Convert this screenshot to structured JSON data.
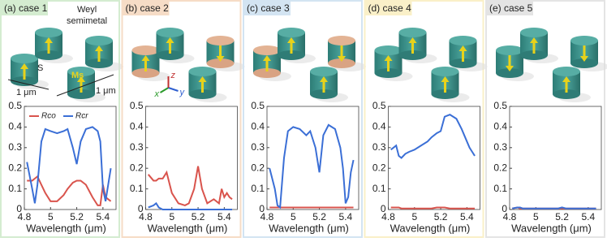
{
  "chart_data": [
    {
      "type": "line",
      "title": "(a) case 1",
      "xlabel": "Wavelength (μm)",
      "annotations": [
        "Weyl",
        "semimetal",
        "S",
        "Ms",
        "1 μm",
        "1 μm"
      ],
      "x": [
        4.82,
        4.86,
        4.88,
        4.9,
        4.93,
        4.96,
        5.0,
        5.05,
        5.1,
        5.13,
        5.17,
        5.2,
        5.23,
        5.27,
        5.32,
        5.36,
        5.38,
        5.4,
        5.42,
        5.44,
        5.46
      ],
      "series": [
        {
          "name": "Rco",
          "color": "#d9544d",
          "values": [
            0.14,
            0.14,
            0.15,
            0.16,
            0.12,
            0.08,
            0.04,
            0.04,
            0.07,
            0.1,
            0.13,
            0.14,
            0.14,
            0.12,
            0.06,
            0.02,
            0.02,
            0.12,
            0.06,
            0.05,
            0.04
          ]
        },
        {
          "name": "Rcr",
          "color": "#3b6fd6",
          "values": [
            0.23,
            0.1,
            0.03,
            0.12,
            0.33,
            0.39,
            0.38,
            0.37,
            0.38,
            0.39,
            0.3,
            0.22,
            0.33,
            0.39,
            0.4,
            0.38,
            0.33,
            0.1,
            0.04,
            0.12,
            0.2
          ]
        }
      ],
      "xlim": [
        4.8,
        5.5
      ],
      "xticks": [
        4.8,
        5,
        5.2,
        5.4
      ],
      "ylim": [
        0,
        0.5
      ],
      "yticks": [
        0,
        0.1,
        0.2,
        0.3,
        0.4,
        0.5
      ],
      "legend": "top",
      "accent": "#d4ecd0"
    },
    {
      "type": "line",
      "title": "(b) case 2",
      "xlabel": "Wavelength (μm)",
      "annotations": [
        "x",
        "y",
        "z"
      ],
      "x": [
        4.82,
        4.86,
        4.88,
        4.9,
        4.93,
        4.96,
        5.0,
        5.05,
        5.1,
        5.13,
        5.17,
        5.2,
        5.23,
        5.27,
        5.32,
        5.36,
        5.38,
        5.4,
        5.42,
        5.44,
        5.46
      ],
      "series": [
        {
          "name": "Rco",
          "color": "#d9544d",
          "values": [
            0.17,
            0.14,
            0.14,
            0.15,
            0.15,
            0.18,
            0.08,
            0.03,
            0.02,
            0.03,
            0.1,
            0.21,
            0.1,
            0.03,
            0.05,
            0.03,
            0.1,
            0.06,
            0.08,
            0.06,
            0.05
          ]
        },
        {
          "name": "Rcr",
          "color": "#3b6fd6",
          "values": [
            0.01,
            0.02,
            0.03,
            0.01,
            0,
            0,
            0,
            0,
            0,
            0,
            0,
            0,
            0,
            0,
            0,
            0,
            0,
            0,
            0,
            0,
            0
          ]
        }
      ],
      "xlim": [
        4.8,
        5.5
      ],
      "xticks": [
        4.8,
        5,
        5.2,
        5.4
      ],
      "ylim": [
        0,
        0.5
      ],
      "yticks": [
        0,
        0.1,
        0.2,
        0.3,
        0.4,
        0.5
      ],
      "accent": "#f6dcc6"
    },
    {
      "type": "line",
      "title": "(c) case 3",
      "xlabel": "Wavelength (μm)",
      "x": [
        4.82,
        4.86,
        4.88,
        4.9,
        4.93,
        4.96,
        5.0,
        5.05,
        5.1,
        5.13,
        5.17,
        5.2,
        5.23,
        5.27,
        5.32,
        5.36,
        5.38,
        5.4,
        5.42,
        5.44,
        5.46
      ],
      "series": [
        {
          "name": "Rco",
          "color": "#d9544d",
          "values": [
            0.01,
            0.01,
            0.01,
            0.01,
            0.01,
            0.01,
            0.01,
            0.01,
            0.01,
            0.01,
            0.01,
            0.01,
            0.01,
            0.01,
            0.01,
            0.01,
            0.01,
            0.01,
            0.01,
            0.01,
            0.01
          ]
        },
        {
          "name": "Rcr",
          "color": "#3b6fd6",
          "values": [
            0.2,
            0.1,
            0.02,
            0.01,
            0.25,
            0.38,
            0.4,
            0.39,
            0.36,
            0.38,
            0.3,
            0.18,
            0.36,
            0.41,
            0.39,
            0.3,
            0.2,
            0.03,
            0.06,
            0.18,
            0.24
          ]
        }
      ],
      "xlim": [
        4.8,
        5.5
      ],
      "xticks": [
        4.8,
        5,
        5.2,
        5.4
      ],
      "ylim": [
        0,
        0.5
      ],
      "yticks": [
        0,
        0.1,
        0.2,
        0.3,
        0.4,
        0.5
      ],
      "accent": "#d3e4f2"
    },
    {
      "type": "line",
      "title": "(d) case 4",
      "xlabel": "Wavelength (μm)",
      "x": [
        4.82,
        4.86,
        4.88,
        4.9,
        4.93,
        4.96,
        5.0,
        5.05,
        5.1,
        5.13,
        5.17,
        5.2,
        5.23,
        5.27,
        5.32,
        5.36,
        5.38,
        5.4,
        5.42,
        5.44,
        5.46
      ],
      "series": [
        {
          "name": "Rco",
          "color": "#d9544d",
          "values": [
            0.01,
            0.01,
            0.01,
            0.005,
            0.005,
            0.005,
            0.005,
            0.005,
            0.005,
            0.005,
            0.01,
            0.01,
            0.01,
            0.005,
            0.005,
            0.005,
            0.005,
            0.005,
            0.005,
            0.005,
            0.005
          ]
        },
        {
          "name": "Rcr",
          "color": "#3b6fd6",
          "values": [
            0.29,
            0.31,
            0.26,
            0.25,
            0.27,
            0.28,
            0.29,
            0.31,
            0.33,
            0.35,
            0.37,
            0.38,
            0.45,
            0.46,
            0.44,
            0.39,
            0.36,
            0.33,
            0.3,
            0.28,
            0.26
          ]
        }
      ],
      "xlim": [
        4.8,
        5.5
      ],
      "xticks": [
        4.8,
        5,
        5.2,
        5.4
      ],
      "ylim": [
        0,
        0.5
      ],
      "yticks": [
        0,
        0.1,
        0.2,
        0.3,
        0.4,
        0.5
      ],
      "accent": "#faf0c8"
    },
    {
      "type": "line",
      "title": "(e) case 5",
      "xlabel": "Wavelength (μm)",
      "x": [
        4.82,
        4.86,
        4.88,
        4.9,
        4.93,
        4.96,
        5.0,
        5.05,
        5.1,
        5.13,
        5.17,
        5.2,
        5.23,
        5.27,
        5.32,
        5.36,
        5.38,
        5.4,
        5.42,
        5.44,
        5.46
      ],
      "series": [
        {
          "name": "Rco",
          "color": "#d9544d",
          "values": [
            0.005,
            0.01,
            0.005,
            0.005,
            0.005,
            0.005,
            0.005,
            0.005,
            0.005,
            0.005,
            0.005,
            0.005,
            0.005,
            0.005,
            0.005,
            0.005,
            0.005,
            0.005,
            0.005,
            0.005,
            0.005
          ]
        },
        {
          "name": "Rcr",
          "color": "#3b6fd6",
          "values": [
            0.005,
            0.01,
            0.01,
            0.005,
            0.005,
            0.005,
            0.005,
            0.005,
            0.005,
            0.005,
            0.005,
            0.01,
            0.005,
            0.005,
            0.005,
            0.005,
            0.005,
            0.005,
            0.005,
            0.005,
            0.005
          ]
        }
      ],
      "xlim": [
        4.8,
        5.5
      ],
      "xticks": [
        4.8,
        5,
        5.2,
        5.4
      ],
      "ylim": [
        0,
        0.5
      ],
      "yticks": [
        0,
        0.1,
        0.2,
        0.3,
        0.4,
        0.5
      ],
      "accent": "#e4e4e4"
    }
  ]
}
